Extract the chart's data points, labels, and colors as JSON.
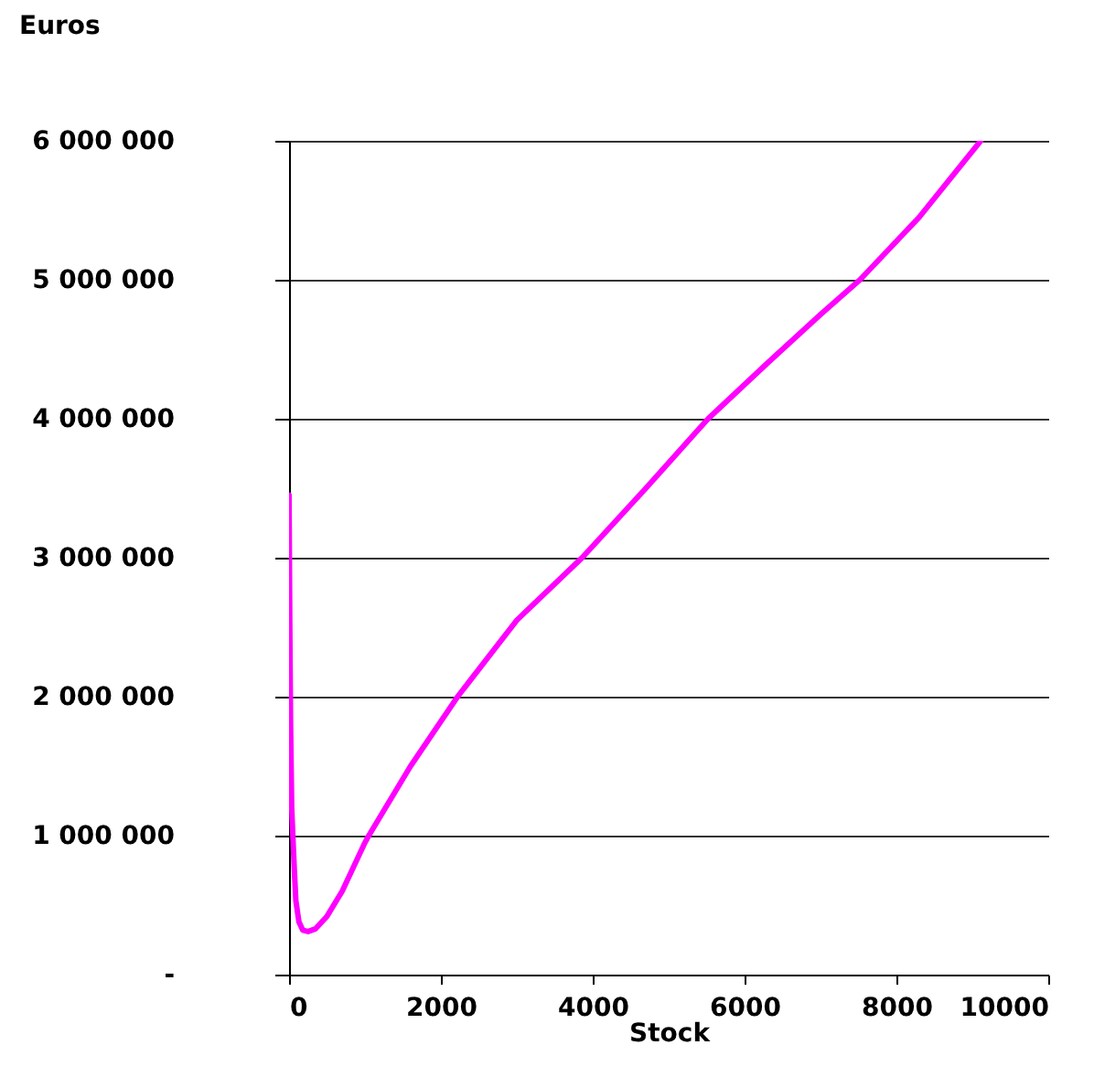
{
  "chart_data": {
    "type": "line",
    "xlabel": "Stock",
    "ylabel": "Euros",
    "x": [
      0,
      10,
      20,
      35,
      50,
      70,
      90,
      130,
      180,
      250,
      350,
      500,
      700,
      1000,
      1050,
      1600,
      2220,
      3000,
      3860,
      4700,
      5520,
      6300,
      7000,
      7520,
      8300,
      9110
    ],
    "series": [
      {
        "color": "#ff00ff",
        "values": [
          3450000,
          2500000,
          1800000,
          1200000,
          1000000,
          750000,
          530000,
          380000,
          320000,
          310000,
          330000,
          420000,
          600000,
          950000,
          1000000,
          1500000,
          2000000,
          2550000,
          3000000,
          3500000,
          4000000,
          4400000,
          4750000,
          5000000,
          5450000,
          6000000
        ]
      }
    ],
    "xlim": [
      0,
      10000
    ],
    "xticks": [
      0,
      2000,
      4000,
      6000,
      8000,
      10000
    ],
    "ylim": [
      0,
      6000000
    ],
    "yticks": [
      {
        "value": 0,
        "label": "-"
      },
      {
        "value": 1000000,
        "label": "1 000 000"
      },
      {
        "value": 2000000,
        "label": "2 000 000"
      },
      {
        "value": 3000000,
        "label": "3 000 000"
      },
      {
        "value": 4000000,
        "label": "4 000 000"
      },
      {
        "value": 5000000,
        "label": "5 000 000"
      },
      {
        "value": 6000000,
        "label": "6 000 000"
      }
    ],
    "grid": "y",
    "legend": false,
    "marker": "none",
    "line_style": "solid"
  }
}
